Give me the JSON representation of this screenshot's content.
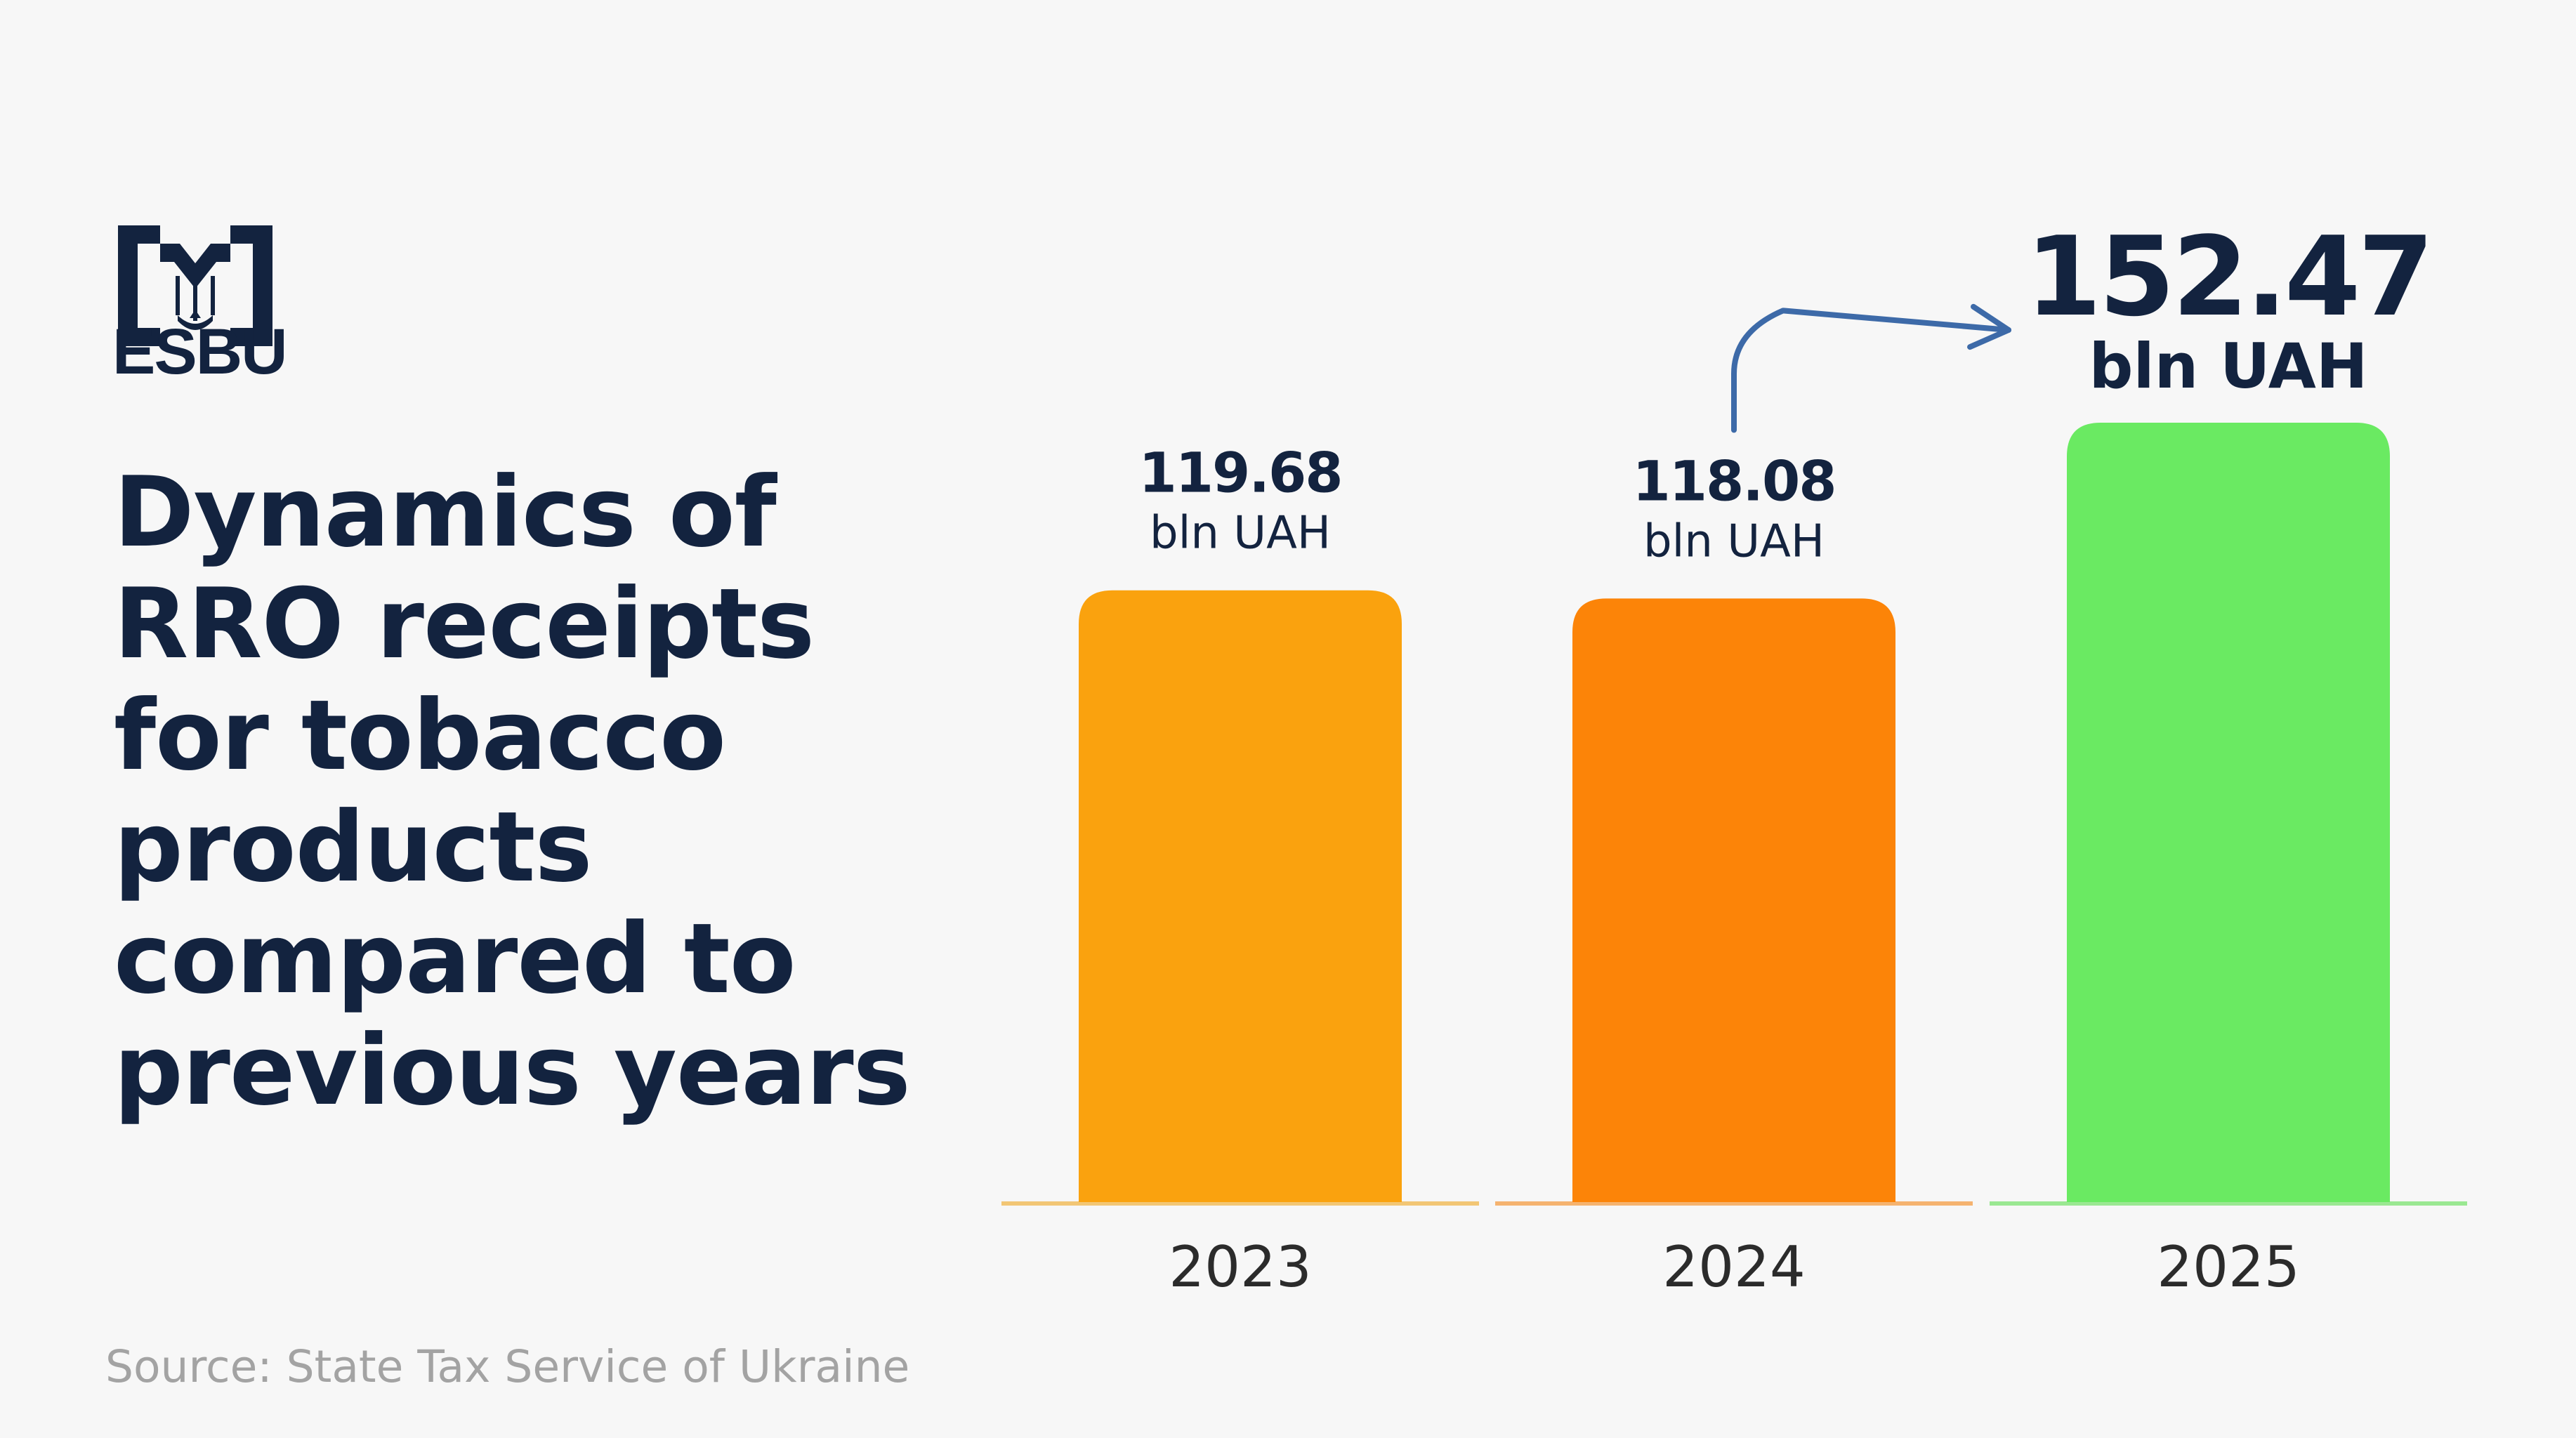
{
  "logo": {
    "wordmark": "ESBU",
    "icon": "trident-emblem-icon",
    "color": "#13233f"
  },
  "title": "Dynamics of RRO receipts for tobacco products compared to previous years",
  "title_lines": [
    "Dynamics of",
    "RRO receipts",
    "for tobacco",
    "products",
    "compared to",
    "previous years"
  ],
  "source": "Source: State Tax Service of Ukraine",
  "chart_data": {
    "type": "bar",
    "categories": [
      "2023",
      "2024",
      "2025"
    ],
    "values": [
      119.68,
      118.08,
      152.47
    ],
    "value_labels": [
      "119.68",
      "118.08",
      "152.47"
    ],
    "unit": "bln UAH",
    "colors": [
      "#faa20e",
      "#fc8408",
      "#6aea62"
    ],
    "baseline_colors": [
      "#f2c675",
      "#f5b370",
      "#9ae892"
    ],
    "highlight_index": 2,
    "annotation": "arrow from 2024 to 2025 value",
    "arrow_color": "#3d6aa8",
    "grid": false,
    "legend": "none"
  }
}
